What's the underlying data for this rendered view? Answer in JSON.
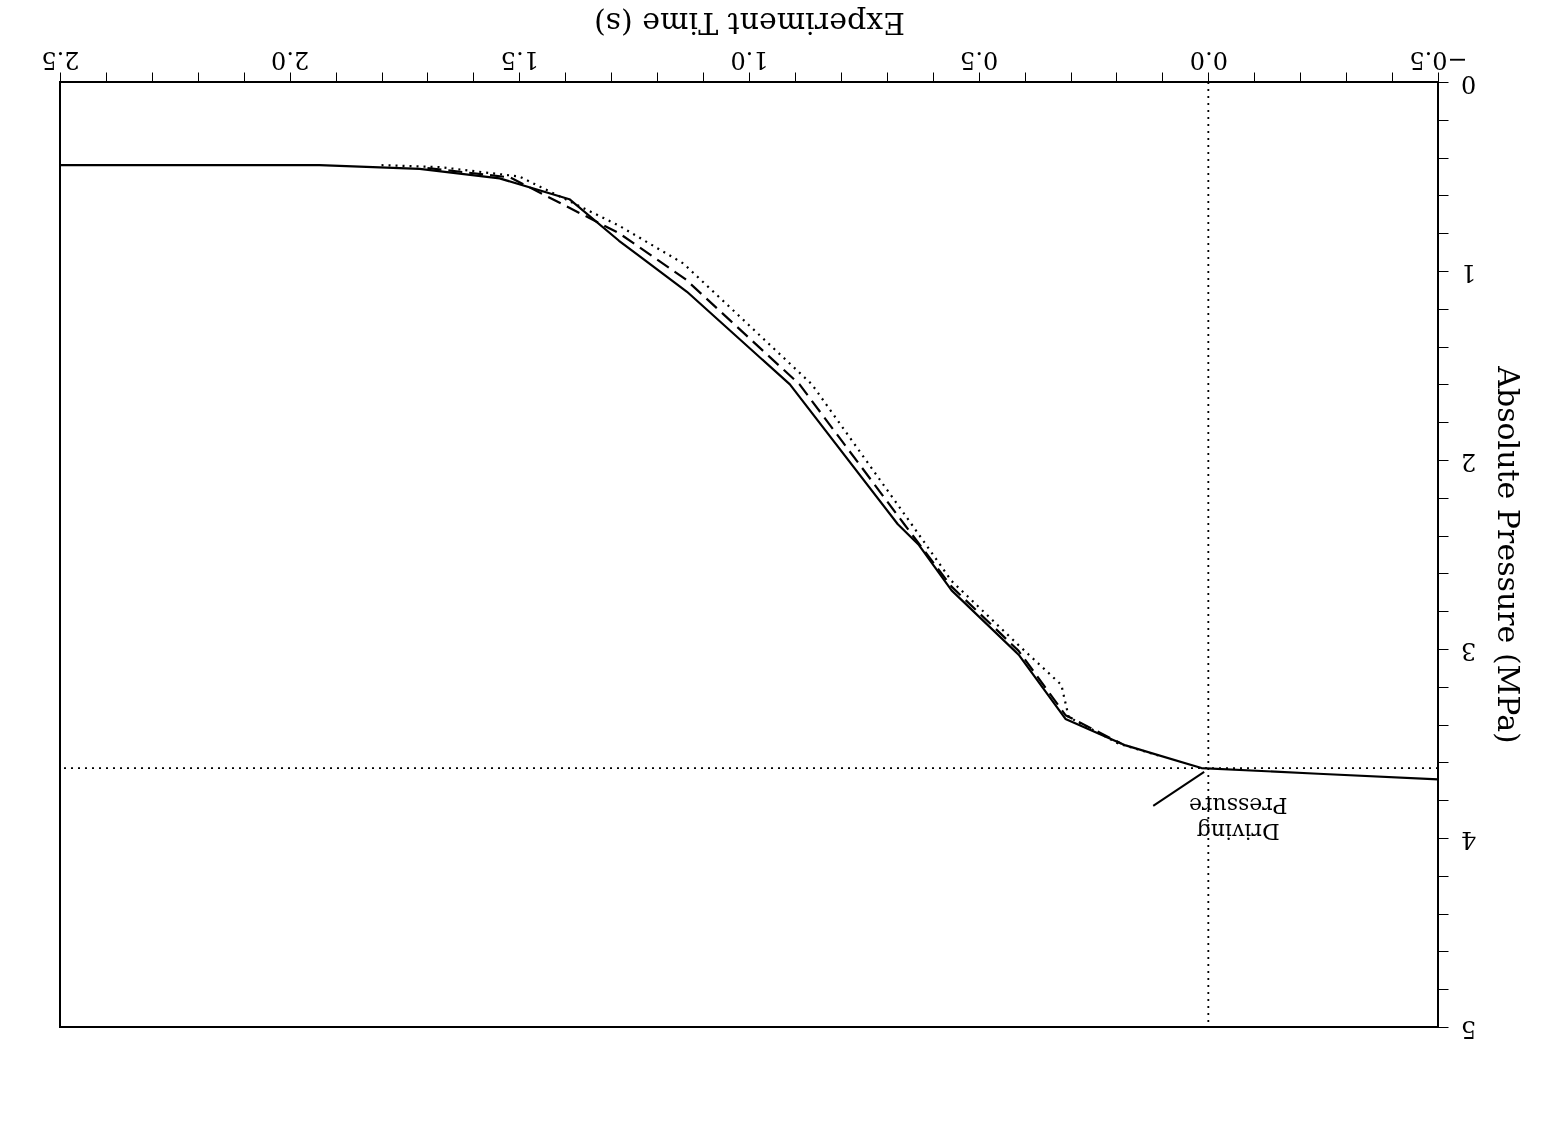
{
  "chart_data": {
    "type": "line",
    "xlabel": "Experiment Time (s)",
    "ylabel": "Absolute Pressure (MPa)",
    "xlim": [
      2.5,
      -0.5
    ],
    "ylim": [
      5,
      0
    ],
    "xticks": [
      {
        "value": -0.5,
        "label": "−0.5"
      },
      {
        "value": -0.4,
        "label": null
      },
      {
        "value": -0.3,
        "label": null
      },
      {
        "value": -0.2,
        "label": null
      },
      {
        "value": -0.1,
        "label": null
      },
      {
        "value": 0,
        "label": "0.0"
      },
      {
        "value": 0.1,
        "label": null
      },
      {
        "value": 0.2,
        "label": null
      },
      {
        "value": 0.3,
        "label": null
      },
      {
        "value": 0.4,
        "label": null
      },
      {
        "value": 0.5,
        "label": "0.5"
      },
      {
        "value": 0.6,
        "label": null
      },
      {
        "value": 0.7,
        "label": null
      },
      {
        "value": 0.8,
        "label": null
      },
      {
        "value": 0.9,
        "label": null
      },
      {
        "value": 1.0,
        "label": "1.0"
      },
      {
        "value": 1.1,
        "label": null
      },
      {
        "value": 1.2,
        "label": null
      },
      {
        "value": 1.3,
        "label": null
      },
      {
        "value": 1.4,
        "label": null
      },
      {
        "value": 1.5,
        "label": "1.5"
      },
      {
        "value": 1.6,
        "label": null
      },
      {
        "value": 1.7,
        "label": null
      },
      {
        "value": 1.8,
        "label": null
      },
      {
        "value": 1.9,
        "label": null
      },
      {
        "value": 2.0,
        "label": "2.0"
      },
      {
        "value": 2.1,
        "label": null
      },
      {
        "value": 2.2,
        "label": null
      },
      {
        "value": 2.3,
        "label": null
      },
      {
        "value": 2.4,
        "label": null
      },
      {
        "value": 2.5,
        "label": "2.5"
      }
    ],
    "yticks": [
      0,
      {
        "value": 0.2,
        "label": null
      },
      {
        "value": 0.4,
        "label": null
      },
      {
        "value": 0.6,
        "label": null
      },
      {
        "value": 0.8,
        "label": null
      },
      1,
      {
        "value": 1.2,
        "label": null
      },
      {
        "value": 1.4,
        "label": null
      },
      {
        "value": 1.6,
        "label": null
      },
      {
        "value": 1.8,
        "label": null
      },
      2,
      {
        "value": 2.2,
        "label": null
      },
      {
        "value": 2.4,
        "label": null
      },
      {
        "value": 2.6,
        "label": null
      },
      {
        "value": 2.8,
        "label": null
      },
      3,
      {
        "value": 3.2,
        "label": null
      },
      {
        "value": 3.4,
        "label": null
      },
      {
        "value": 3.6,
        "label": null
      },
      {
        "value": 3.8,
        "label": null
      },
      4,
      {
        "value": 4.2,
        "label": null
      },
      {
        "value": 4.4,
        "label": null
      },
      {
        "value": 4.6,
        "label": null
      },
      {
        "value": 4.8,
        "label": null
      },
      5
    ],
    "grid": false,
    "marker": "none",
    "ref_lines": [
      {
        "axis": "x",
        "value": 0,
        "line_style": "dotted",
        "color": "#000000"
      },
      {
        "axis": "y",
        "value": 3.63,
        "line_style": "dotted",
        "color": "#000000"
      }
    ],
    "annotations": [
      {
        "text": "Driving Pressure",
        "x": 0,
        "y": 3.63
      }
    ],
    "series": [
      {
        "color": "#000000",
        "line_style": "solid",
        "x": [
          2.5,
          1.935,
          1.717,
          1.543,
          1.391,
          1.283,
          1.135,
          0.911,
          0.676,
          0.63,
          0.559,
          0.413,
          0.311,
          0.18,
          0.015,
          -0.239,
          -0.5
        ],
        "values": [
          0.44,
          0.44,
          0.46,
          0.51,
          0.62,
          0.84,
          1.11,
          1.6,
          2.34,
          2.45,
          2.69,
          3.03,
          3.37,
          3.51,
          3.63,
          3.66,
          3.69
        ]
      },
      {
        "color": "#000000",
        "line_style": "dashed",
        "x": [
          1.7,
          1.52,
          1.283,
          1.14,
          0.89,
          0.662,
          0.559,
          0.413,
          0.311,
          0.19
        ],
        "values": [
          0.455,
          0.505,
          0.8,
          1.04,
          1.6,
          2.34,
          2.67,
          3.01,
          3.35,
          3.5
        ]
      },
      {
        "color": "#000000",
        "line_style": "dotted",
        "x": [
          1.8,
          1.674,
          1.5,
          1.283,
          1.143,
          0.863,
          0.646,
          0.559,
          0.413,
          0.32,
          0.304,
          0.196,
          0.1
        ],
        "values": [
          0.44,
          0.45,
          0.5,
          0.76,
          0.96,
          1.6,
          2.34,
          2.64,
          2.98,
          3.19,
          3.36,
          3.5,
          3.57
        ]
      }
    ]
  }
}
